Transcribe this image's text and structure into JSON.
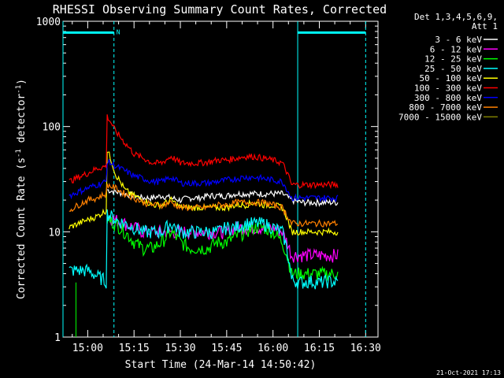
{
  "chart_data": {
    "type": "line",
    "title": "RHESSI Observing Summary Count Rates, Corrected",
    "xlabel": "Start Time (24-Mar-14 14:50:42)",
    "ylabel_main": "Corrected Count Rate (s",
    "ylabel_sup1": "-1",
    "ylabel_mid": " detector",
    "ylabel_sup2": "-1",
    "ylabel_end": ")",
    "yscale": "log",
    "ylim": [
      1,
      1000
    ],
    "xlim_minutes": [
      -8,
      94
    ],
    "y_ticks": [
      {
        "value": 1,
        "label": "1"
      },
      {
        "value": 10,
        "label": "10"
      },
      {
        "value": 100,
        "label": "100"
      },
      {
        "value": 1000,
        "label": "1000"
      }
    ],
    "x_ticks": [
      {
        "minute": 0,
        "label": "15:00"
      },
      {
        "minute": 15,
        "label": "15:15"
      },
      {
        "minute": 30,
        "label": "15:30"
      },
      {
        "minute": 45,
        "label": "15:45"
      },
      {
        "minute": 60,
        "label": "16:00"
      },
      {
        "minute": 75,
        "label": "16:15"
      },
      {
        "minute": 90,
        "label": "16:30"
      }
    ],
    "legend_header": [
      "Det 1,3,4,5,6,9,",
      "Att 1"
    ],
    "series": [
      {
        "name": "3 - 6 keV",
        "color": "#ffffff",
        "values": [
          null,
          null,
          null,
          null,
          null,
          25,
          24,
          23,
          22,
          21,
          21,
          22,
          21,
          20,
          21,
          21,
          22,
          22,
          22,
          23,
          23,
          23,
          23,
          23,
          23,
          20,
          19,
          19,
          19,
          19,
          19,
          null
        ]
      },
      {
        "name": "6 - 12 keV",
        "color": "#ff00ff",
        "values": [
          null,
          null,
          null,
          null,
          null,
          14,
          13,
          12,
          11,
          10,
          10,
          10,
          10,
          10,
          10,
          10,
          10,
          10,
          10,
          11,
          11,
          11,
          11,
          11,
          10,
          6,
          6,
          6,
          6,
          6,
          6,
          null
        ]
      },
      {
        "name": "12 - 25 keV",
        "color": "#00ff00",
        "values": [
          null,
          null,
          null,
          null,
          null,
          13,
          12,
          10,
          8,
          7,
          7,
          8,
          10,
          8,
          7,
          7,
          7,
          8,
          8,
          9,
          10,
          11,
          11,
          10,
          8,
          4,
          4,
          4,
          4,
          4,
          4,
          null
        ]
      },
      {
        "name": "25 - 50 keV",
        "color": "#00ffff",
        "values": [
          4.3,
          4.3,
          4.3,
          3.8,
          3.4,
          15,
          13,
          12,
          11,
          10,
          10,
          10,
          12,
          10,
          10,
          10,
          10,
          10,
          11,
          11,
          12,
          12,
          12,
          11,
          10,
          3.5,
          3.3,
          3.4,
          3.3,
          3.4,
          3.3,
          null
        ]
      },
      {
        "name": "50 - 100 keV",
        "color": "#ffff00",
        "values": [
          11,
          12,
          13,
          14,
          16,
          60,
          35,
          25,
          22,
          20,
          18,
          18,
          20,
          17,
          17,
          17,
          17,
          17,
          17,
          18,
          18,
          19,
          18,
          18,
          17,
          10,
          10,
          10,
          10,
          10,
          10,
          null
        ]
      },
      {
        "name": "100 - 300 keV",
        "color": "#ff0000",
        "values": [
          30,
          33,
          36,
          40,
          42,
          125,
          90,
          70,
          55,
          50,
          45,
          45,
          52,
          45,
          45,
          45,
          46,
          48,
          48,
          50,
          52,
          52,
          50,
          48,
          45,
          28,
          28,
          28,
          28,
          28,
          28,
          null
        ]
      },
      {
        "name": "300 - 800 keV",
        "color": "#0000ff",
        "values": [
          22,
          24,
          26,
          28,
          30,
          47,
          42,
          38,
          34,
          32,
          30,
          30,
          33,
          29,
          29,
          29,
          29,
          30,
          31,
          32,
          33,
          33,
          32,
          31,
          30,
          21,
          21,
          21,
          21,
          21,
          21,
          null
        ]
      },
      {
        "name": "800 - 7000 keV",
        "color": "#ff8000",
        "values": [
          16,
          18,
          20,
          21,
          23,
          28,
          26,
          23,
          21,
          19,
          18,
          18,
          19,
          17,
          17,
          17,
          17,
          18,
          18,
          19,
          19,
          19,
          19,
          18,
          17,
          12,
          12,
          12,
          12,
          12,
          12,
          null
        ]
      },
      {
        "name": "7000 - 15000 keV",
        "color": "#808000",
        "values": [
          null,
          null,
          null,
          null,
          null,
          null,
          null,
          null,
          null,
          null,
          null,
          null,
          null,
          null,
          null,
          null,
          null,
          null,
          null,
          null,
          null,
          null,
          null,
          null,
          null,
          null,
          null,
          null,
          null,
          null,
          null,
          null
        ]
      }
    ],
    "x_minutes": [
      -6,
      -3,
      0,
      3,
      6,
      6.3,
      9,
      12,
      15,
      18,
      21,
      24,
      27,
      30,
      33,
      36,
      39,
      42,
      45,
      48,
      51,
      54,
      57,
      60,
      63,
      66,
      69,
      72,
      75,
      78,
      81,
      84
    ],
    "night_shade_minutes": [
      [
        -8,
        -8
      ]
    ],
    "saa_bars": [
      {
        "from": -8,
        "to": 8.5,
        "value": 780,
        "label": "N"
      },
      {
        "from": 68,
        "to": 90,
        "value": 780,
        "label": ""
      }
    ],
    "vertical_markers": [
      {
        "minute": -8,
        "style": "solid"
      },
      {
        "minute": 8.5,
        "style": "dashed"
      },
      {
        "minute": 68,
        "style": "solid"
      },
      {
        "minute": 90,
        "style": "dashed"
      }
    ],
    "spike_green": {
      "minute": -3.8,
      "from": 1,
      "to": 3.3
    },
    "timestamp": "21-Oct-2021 17:13"
  }
}
